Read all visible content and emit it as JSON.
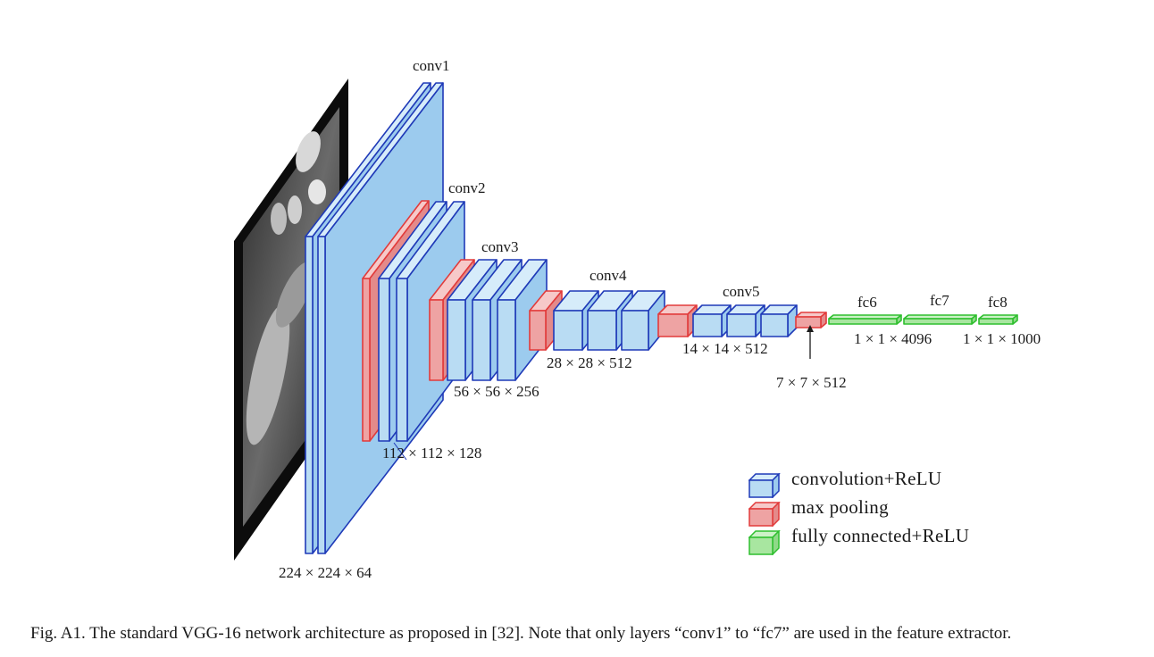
{
  "layer_labels": {
    "conv1": "conv1",
    "conv2": "conv2",
    "conv3": "conv3",
    "conv4": "conv4",
    "conv5": "conv5",
    "fc6": "fc6",
    "fc7": "fc7",
    "fc8": "fc8"
  },
  "dimensions": {
    "d224": "224 × 224 × 64",
    "d112": "112 × 112 × 128",
    "d56": "56 × 56 × 256",
    "d28": "28 × 28 × 512",
    "d14": "14 × 14 × 512",
    "d7": "7 × 7 × 512",
    "d4096": "1 × 1 × 4096",
    "d1000": "1 × 1 × 1000"
  },
  "legend": {
    "conv": "convolution+ReLU",
    "pool": "max pooling",
    "fc": "fully connected+ReLU"
  },
  "colors": {
    "conv_fill": "#b9dcf3",
    "conv_stroke": "#1f3ab8",
    "pool_fill": "#eea3a3",
    "pool_stroke": "#e23b3b",
    "fc_fill": "#a8e6a0",
    "fc_stroke": "#2fbf2f"
  },
  "caption": "Fig. A1. The standard VGG-16 network architecture as proposed in [32]. Note that only layers “conv1” to “fc7” are used in the feature extractor."
}
